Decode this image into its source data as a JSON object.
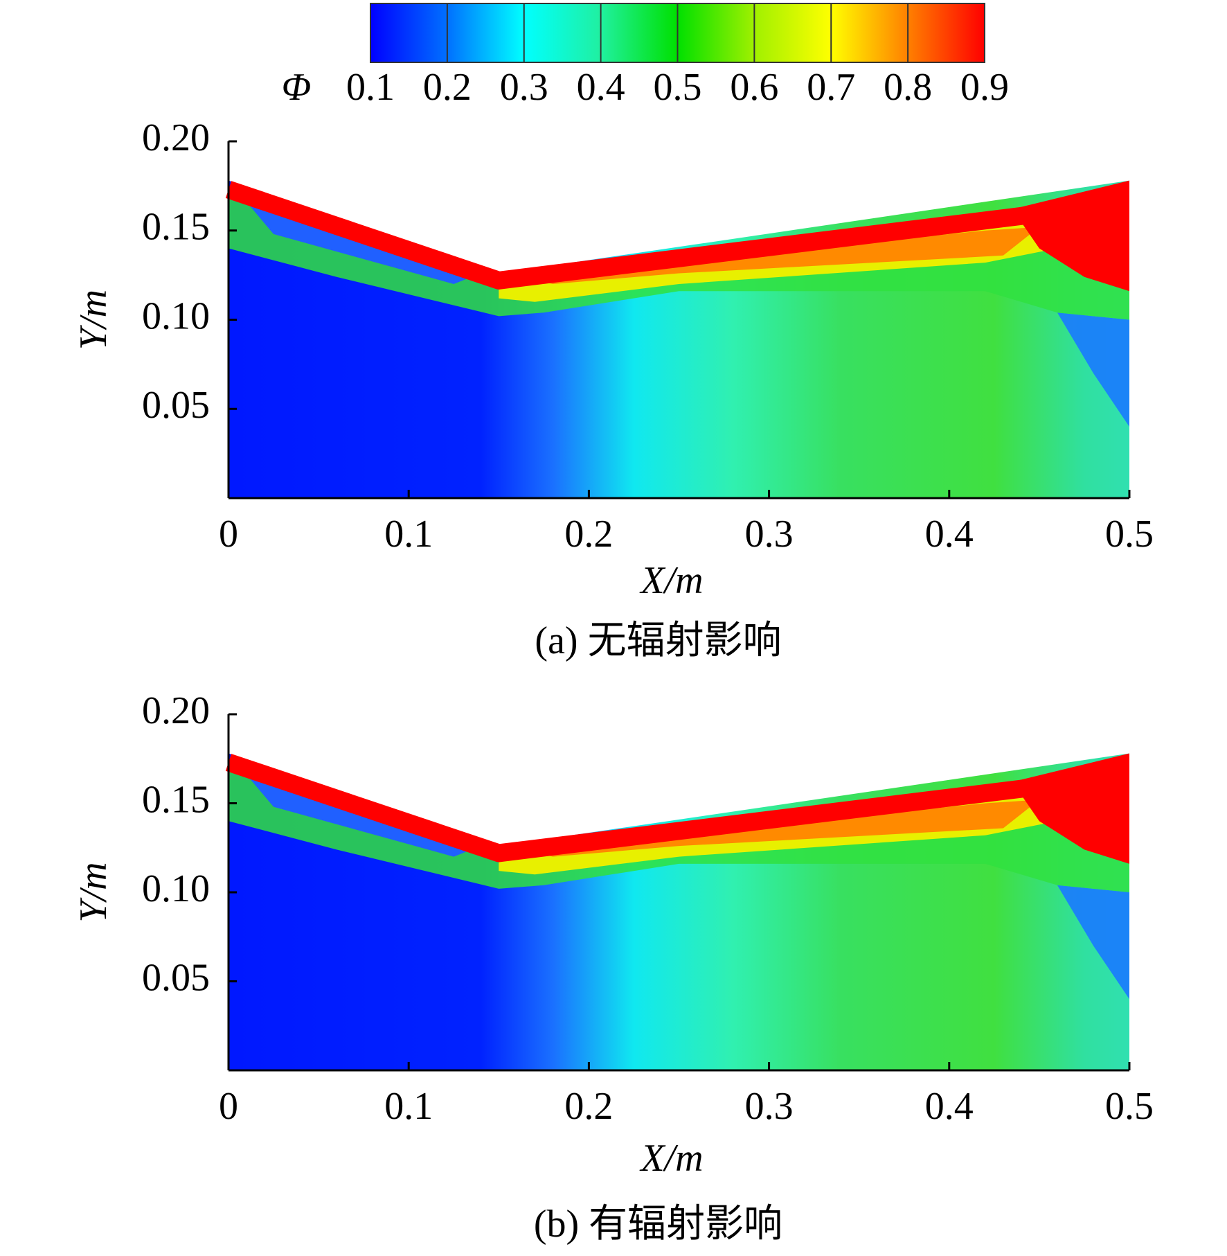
{
  "chart_data": [
    {
      "type": "contour",
      "colorbar": {
        "label": "Φ",
        "lim": [
          0.1,
          0.9
        ],
        "ticks": [
          0.1,
          0.2,
          0.3,
          0.4,
          0.5,
          0.6,
          0.7,
          0.8,
          0.9
        ],
        "colors": [
          "#0000ff",
          "#0070ff",
          "#00ffff",
          "#20f0a0",
          "#00e000",
          "#a0f000",
          "#ffff00",
          "#ff8000",
          "#ff0000"
        ]
      },
      "xlabel": "X/m",
      "ylabel": "Y/m",
      "title": "(a) 无辐射影响",
      "xlim": [
        0,
        0.5
      ],
      "ylim": [
        0,
        0.2
      ],
      "xticks": [
        0,
        0.1,
        0.2,
        0.3,
        0.4,
        0.5
      ],
      "yticks": [
        {
          "value": 0.05,
          "label": "0.05"
        },
        {
          "value": 0.1,
          "label": "0.10"
        },
        {
          "value": 0.15,
          "label": "0.15"
        },
        {
          "value": 0.2,
          "label": "0.20"
        }
      ]
    },
    {
      "type": "contour",
      "xlabel": "X/m",
      "ylabel": "Y/m",
      "title": "(b) 有辐射影响",
      "xlim": [
        0,
        0.5
      ],
      "ylim": [
        0,
        0.2
      ],
      "xticks": [
        0,
        0.1,
        0.2,
        0.3,
        0.4,
        0.5
      ],
      "yticks": [
        {
          "value": 0.05,
          "label": "0.05"
        },
        {
          "value": 0.1,
          "label": "0.10"
        },
        {
          "value": 0.15,
          "label": "0.15"
        },
        {
          "value": 0.2,
          "label": "0.20"
        }
      ]
    }
  ]
}
